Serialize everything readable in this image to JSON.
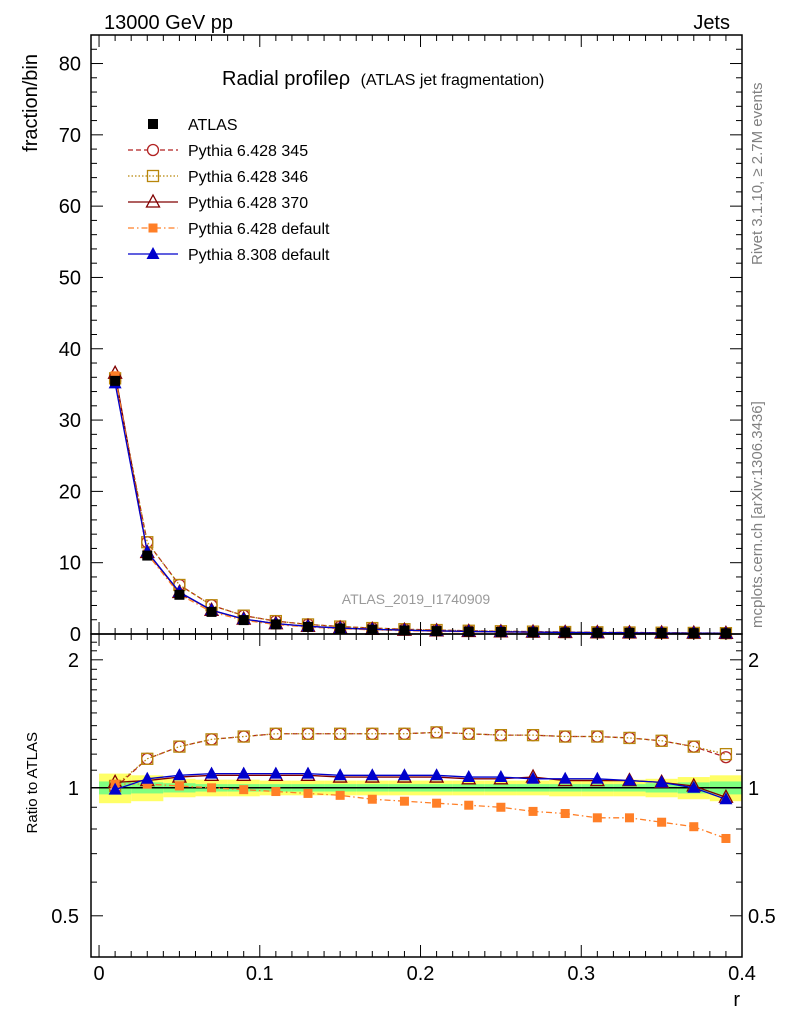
{
  "header": {
    "left": "13000 GeV pp",
    "right": "Jets"
  },
  "side": {
    "rivet": "Rivet 3.1.10, ≥ 2.7M events",
    "mcplots": "mcplots.cern.ch [arXiv:1306.3436]"
  },
  "watermark": "ATLAS_2019_I1740909",
  "colors": {
    "atlas": "#000000",
    "p345": "#b22222",
    "p346": "#b8860b",
    "p370": "#800000",
    "p6def": "#ff7f27",
    "p8def": "#0000cc",
    "band_yellow": "#ffff66",
    "band_green": "#80ff80"
  },
  "chart_data": {
    "type": "line",
    "title_main": "Radial profileρ",
    "title_sub": "(ATLAS jet fragmentation)",
    "xlabel": "r",
    "ylabel_top": "fraction/bin",
    "ylabel_bottom": "Ratio to ATLAS",
    "xlim": [
      -0.005,
      0.4
    ],
    "ylim_top": [
      0,
      84
    ],
    "ylim_ratio": [
      0.4,
      2.3
    ],
    "ratio_scale": "log",
    "x_ticks": [
      "0",
      "0.1",
      "0.2",
      "0.3",
      "0.4"
    ],
    "y_ticks_top": [
      "0",
      "10",
      "20",
      "30",
      "40",
      "50",
      "60",
      "70",
      "80"
    ],
    "y_ticks_ratio": [
      "0.5",
      "1",
      "2"
    ],
    "legend_position": "top-left",
    "x": [
      0.01,
      0.03,
      0.05,
      0.07,
      0.09,
      0.11,
      0.13,
      0.15,
      0.17,
      0.19,
      0.21,
      0.23,
      0.25,
      0.27,
      0.29,
      0.31,
      0.33,
      0.35,
      0.37,
      0.39
    ],
    "data": {
      "name": "ATLAS",
      "values": [
        35.5,
        11.0,
        5.5,
        3.1,
        1.95,
        1.35,
        1.0,
        0.78,
        0.62,
        0.5,
        0.41,
        0.34,
        0.29,
        0.25,
        0.21,
        0.18,
        0.16,
        0.14,
        0.12,
        0.1
      ]
    },
    "band": {
      "yellow": [
        0.08,
        0.07,
        0.05,
        0.045,
        0.045,
        0.04,
        0.04,
        0.04,
        0.04,
        0.04,
        0.04,
        0.04,
        0.04,
        0.04,
        0.045,
        0.045,
        0.045,
        0.05,
        0.06,
        0.07
      ],
      "green": [
        0.035,
        0.03,
        0.025,
        0.02,
        0.02,
        0.02,
        0.02,
        0.02,
        0.02,
        0.02,
        0.02,
        0.02,
        0.02,
        0.02,
        0.02,
        0.02,
        0.02,
        0.025,
        0.03,
        0.035
      ]
    },
    "series": [
      {
        "name": "Pythia 6.428 345",
        "marker": "circle-open",
        "dash": "5,3",
        "color_key": "p345",
        "ratio": [
          1.0,
          1.17,
          1.25,
          1.3,
          1.32,
          1.34,
          1.34,
          1.34,
          1.34,
          1.34,
          1.35,
          1.34,
          1.33,
          1.33,
          1.32,
          1.32,
          1.31,
          1.29,
          1.25,
          1.18
        ]
      },
      {
        "name": "Pythia 6.428 346",
        "marker": "square-open",
        "dash": "1.5,2",
        "color_key": "p346",
        "ratio": [
          1.01,
          1.17,
          1.25,
          1.3,
          1.32,
          1.34,
          1.34,
          1.34,
          1.34,
          1.34,
          1.35,
          1.34,
          1.33,
          1.33,
          1.32,
          1.32,
          1.31,
          1.29,
          1.25,
          1.2
        ]
      },
      {
        "name": "Pythia 6.428 370",
        "marker": "triangle-open",
        "dash": "",
        "color_key": "p370",
        "ratio": [
          1.03,
          1.04,
          1.06,
          1.07,
          1.07,
          1.07,
          1.07,
          1.06,
          1.06,
          1.06,
          1.06,
          1.05,
          1.05,
          1.06,
          1.04,
          1.04,
          1.04,
          1.03,
          1.01,
          0.95
        ]
      },
      {
        "name": "Pythia 6.428 default",
        "marker": "square-filled",
        "dash": "6,3,1.5,3",
        "color_key": "p6def",
        "ratio": [
          1.02,
          1.02,
          1.01,
          1.0,
          0.99,
          0.98,
          0.97,
          0.96,
          0.94,
          0.93,
          0.92,
          0.91,
          0.9,
          0.88,
          0.87,
          0.85,
          0.85,
          0.83,
          0.81,
          0.76
        ]
      },
      {
        "name": "Pythia 8.308 default",
        "marker": "triangle-filled",
        "dash": "",
        "color_key": "p8def",
        "ratio": [
          0.99,
          1.05,
          1.07,
          1.08,
          1.08,
          1.08,
          1.08,
          1.07,
          1.07,
          1.07,
          1.07,
          1.06,
          1.06,
          1.05,
          1.05,
          1.05,
          1.04,
          1.03,
          1.0,
          0.94
        ]
      }
    ]
  }
}
